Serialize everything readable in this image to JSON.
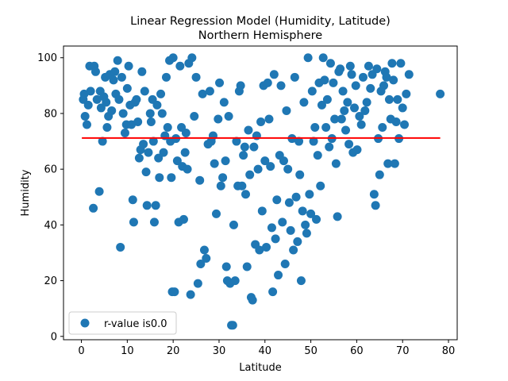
{
  "chart_data": {
    "type": "scatter",
    "title_line1": "Linear Regression Model (Humidity, Latitude)",
    "title_line2": "Northern Hemisphere",
    "xlabel": "Latitude",
    "ylabel": "Humidity",
    "xlim": [
      -3.9,
      81.9
    ],
    "ylim": [
      -1.2,
      104.2
    ],
    "xticks": [
      0,
      10,
      20,
      30,
      40,
      50,
      60,
      70,
      80
    ],
    "yticks": [
      0,
      20,
      40,
      60,
      80,
      100
    ],
    "grid": false,
    "legend_position": "lower-left",
    "legend_label": "r-value is0.0",
    "regression_line": {
      "x": [
        0.1,
        78.2
      ],
      "y": [
        71.2,
        71.2
      ],
      "color": "#ff0000"
    },
    "series": [
      {
        "name": "r-value is0.0",
        "color": "#1f77b4",
        "points": [
          [
            0.4,
            85
          ],
          [
            0.6,
            87
          ],
          [
            0.8,
            79
          ],
          [
            1.2,
            76
          ],
          [
            1.5,
            83
          ],
          [
            1.8,
            97
          ],
          [
            2.0,
            88
          ],
          [
            2.6,
            46
          ],
          [
            2.8,
            97
          ],
          [
            3.1,
            95
          ],
          [
            3.4,
            85
          ],
          [
            3.9,
            52
          ],
          [
            4.1,
            88
          ],
          [
            4.3,
            82
          ],
          [
            4.6,
            70
          ],
          [
            4.9,
            86
          ],
          [
            5.2,
            93
          ],
          [
            5.4,
            84
          ],
          [
            5.6,
            75
          ],
          [
            5.9,
            79
          ],
          [
            6.2,
            94
          ],
          [
            6.6,
            81
          ],
          [
            7.0,
            92
          ],
          [
            7.3,
            95
          ],
          [
            7.5,
            87
          ],
          [
            7.9,
            99
          ],
          [
            8.2,
            85
          ],
          [
            8.5,
            32
          ],
          [
            8.8,
            93
          ],
          [
            9.1,
            80
          ],
          [
            9.5,
            73
          ],
          [
            9.8,
            76
          ],
          [
            10.0,
            89
          ],
          [
            10.3,
            97
          ],
          [
            10.6,
            83
          ],
          [
            10.9,
            76
          ],
          [
            11.2,
            49
          ],
          [
            11.4,
            41
          ],
          [
            11.7,
            84
          ],
          [
            12.0,
            85
          ],
          [
            12.3,
            77
          ],
          [
            12.6,
            64
          ],
          [
            12.9,
            67
          ],
          [
            13.2,
            95
          ],
          [
            13.5,
            69
          ],
          [
            13.8,
            88
          ],
          [
            14.1,
            59
          ],
          [
            14.3,
            47
          ],
          [
            14.6,
            66
          ],
          [
            15.0,
            80
          ],
          [
            15.2,
            77
          ],
          [
            15.5,
            85
          ],
          [
            15.7,
            70
          ],
          [
            15.9,
            41
          ],
          [
            16.2,
            47
          ],
          [
            16.5,
            83
          ],
          [
            16.8,
            64
          ],
          [
            17.0,
            57
          ],
          [
            17.3,
            87
          ],
          [
            17.6,
            80
          ],
          [
            17.9,
            66
          ],
          [
            18.2,
            72
          ],
          [
            18.5,
            93
          ],
          [
            18.8,
            75
          ],
          [
            19.2,
            99
          ],
          [
            19.4,
            70
          ],
          [
            19.6,
            57
          ],
          [
            19.8,
            16
          ],
          [
            20.0,
            100
          ],
          [
            20.3,
            16
          ],
          [
            20.6,
            71
          ],
          [
            20.9,
            63
          ],
          [
            21.2,
            41
          ],
          [
            21.5,
            97
          ],
          [
            21.8,
            75
          ],
          [
            22.0,
            61
          ],
          [
            22.3,
            42
          ],
          [
            22.6,
            66
          ],
          [
            22.8,
            73
          ],
          [
            23.1,
            60
          ],
          [
            23.4,
            98
          ],
          [
            23.8,
            15
          ],
          [
            24.1,
            100
          ],
          [
            24.6,
            79
          ],
          [
            25.0,
            93
          ],
          [
            25.4,
            19
          ],
          [
            25.8,
            56
          ],
          [
            26.0,
            26
          ],
          [
            26.4,
            87
          ],
          [
            26.8,
            31
          ],
          [
            27.2,
            28
          ],
          [
            27.6,
            69
          ],
          [
            28.0,
            88
          ],
          [
            28.3,
            70
          ],
          [
            28.7,
            72
          ],
          [
            29.0,
            62
          ],
          [
            29.4,
            44
          ],
          [
            29.8,
            78
          ],
          [
            30.1,
            91
          ],
          [
            30.4,
            54
          ],
          [
            30.8,
            57
          ],
          [
            31.1,
            84
          ],
          [
            31.4,
            63
          ],
          [
            31.6,
            25
          ],
          [
            31.8,
            20
          ],
          [
            32.1,
            79
          ],
          [
            32.4,
            19
          ],
          [
            32.7,
            4
          ],
          [
            33.0,
            4
          ],
          [
            33.2,
            40
          ],
          [
            33.5,
            20
          ],
          [
            33.8,
            70
          ],
          [
            34.1,
            54
          ],
          [
            34.4,
            88
          ],
          [
            34.7,
            90
          ],
          [
            35.0,
            54
          ],
          [
            35.3,
            65
          ],
          [
            35.6,
            68
          ],
          [
            35.8,
            51
          ],
          [
            36.1,
            25
          ],
          [
            36.4,
            74
          ],
          [
            36.7,
            58
          ],
          [
            37.0,
            14
          ],
          [
            37.3,
            13
          ],
          [
            37.6,
            68
          ],
          [
            37.9,
            33
          ],
          [
            38.2,
            72
          ],
          [
            38.5,
            60
          ],
          [
            38.8,
            31
          ],
          [
            39.1,
            77
          ],
          [
            39.4,
            45
          ],
          [
            39.7,
            90
          ],
          [
            40.0,
            63
          ],
          [
            40.3,
            32
          ],
          [
            40.6,
            91
          ],
          [
            40.9,
            78
          ],
          [
            41.2,
            61
          ],
          [
            41.5,
            39
          ],
          [
            41.7,
            16
          ],
          [
            42.0,
            94
          ],
          [
            42.3,
            35
          ],
          [
            42.6,
            49
          ],
          [
            42.9,
            22
          ],
          [
            43.2,
            65
          ],
          [
            43.5,
            90
          ],
          [
            43.8,
            41
          ],
          [
            44.1,
            63
          ],
          [
            44.4,
            26
          ],
          [
            44.7,
            81
          ],
          [
            45.0,
            60
          ],
          [
            45.3,
            48
          ],
          [
            45.6,
            38
          ],
          [
            45.9,
            71
          ],
          [
            46.2,
            31
          ],
          [
            46.5,
            93
          ],
          [
            46.8,
            50
          ],
          [
            47.1,
            34
          ],
          [
            47.4,
            70
          ],
          [
            47.6,
            58
          ],
          [
            47.9,
            20
          ],
          [
            48.2,
            45
          ],
          [
            48.5,
            84
          ],
          [
            48.8,
            40
          ],
          [
            49.1,
            37
          ],
          [
            49.4,
            100
          ],
          [
            49.7,
            51
          ],
          [
            50.0,
            44
          ],
          [
            50.3,
            88
          ],
          [
            50.6,
            70
          ],
          [
            50.9,
            75
          ],
          [
            51.2,
            42
          ],
          [
            51.5,
            65
          ],
          [
            51.8,
            91
          ],
          [
            52.1,
            54
          ],
          [
            52.4,
            83
          ],
          [
            52.7,
            100
          ],
          [
            53.0,
            92
          ],
          [
            53.3,
            75
          ],
          [
            53.6,
            85
          ],
          [
            54.0,
            68
          ],
          [
            54.3,
            98
          ],
          [
            54.6,
            71
          ],
          [
            54.9,
            91
          ],
          [
            55.2,
            78
          ],
          [
            55.5,
            62
          ],
          [
            55.8,
            43
          ],
          [
            56.1,
            95
          ],
          [
            56.4,
            96
          ],
          [
            56.7,
            78
          ],
          [
            57.0,
            88
          ],
          [
            57.3,
            81
          ],
          [
            57.6,
            74
          ],
          [
            58.0,
            84
          ],
          [
            58.3,
            69
          ],
          [
            58.6,
            97
          ],
          [
            58.9,
            94
          ],
          [
            59.2,
            66
          ],
          [
            59.5,
            82
          ],
          [
            59.8,
            90
          ],
          [
            60.1,
            67
          ],
          [
            60.6,
            79
          ],
          [
            61.0,
            76
          ],
          [
            61.4,
            93
          ],
          [
            61.8,
            81
          ],
          [
            62.2,
            84
          ],
          [
            62.6,
            97
          ],
          [
            63.0,
            89
          ],
          [
            63.4,
            94
          ],
          [
            63.8,
            51
          ],
          [
            64.1,
            47
          ],
          [
            64.4,
            96
          ],
          [
            64.7,
            71
          ],
          [
            65.0,
            58
          ],
          [
            65.3,
            88
          ],
          [
            65.6,
            75
          ],
          [
            65.9,
            90
          ],
          [
            66.2,
            95
          ],
          [
            66.5,
            93
          ],
          [
            66.8,
            62
          ],
          [
            67.1,
            85
          ],
          [
            67.4,
            78
          ],
          [
            67.7,
            98
          ],
          [
            68.0,
            92
          ],
          [
            68.3,
            62
          ],
          [
            68.6,
            77
          ],
          [
            68.9,
            85
          ],
          [
            69.2,
            71
          ],
          [
            69.6,
            98
          ],
          [
            70.0,
            82
          ],
          [
            70.4,
            76
          ],
          [
            70.8,
            87
          ],
          [
            71.4,
            94
          ],
          [
            78.2,
            87
          ]
        ]
      }
    ]
  }
}
